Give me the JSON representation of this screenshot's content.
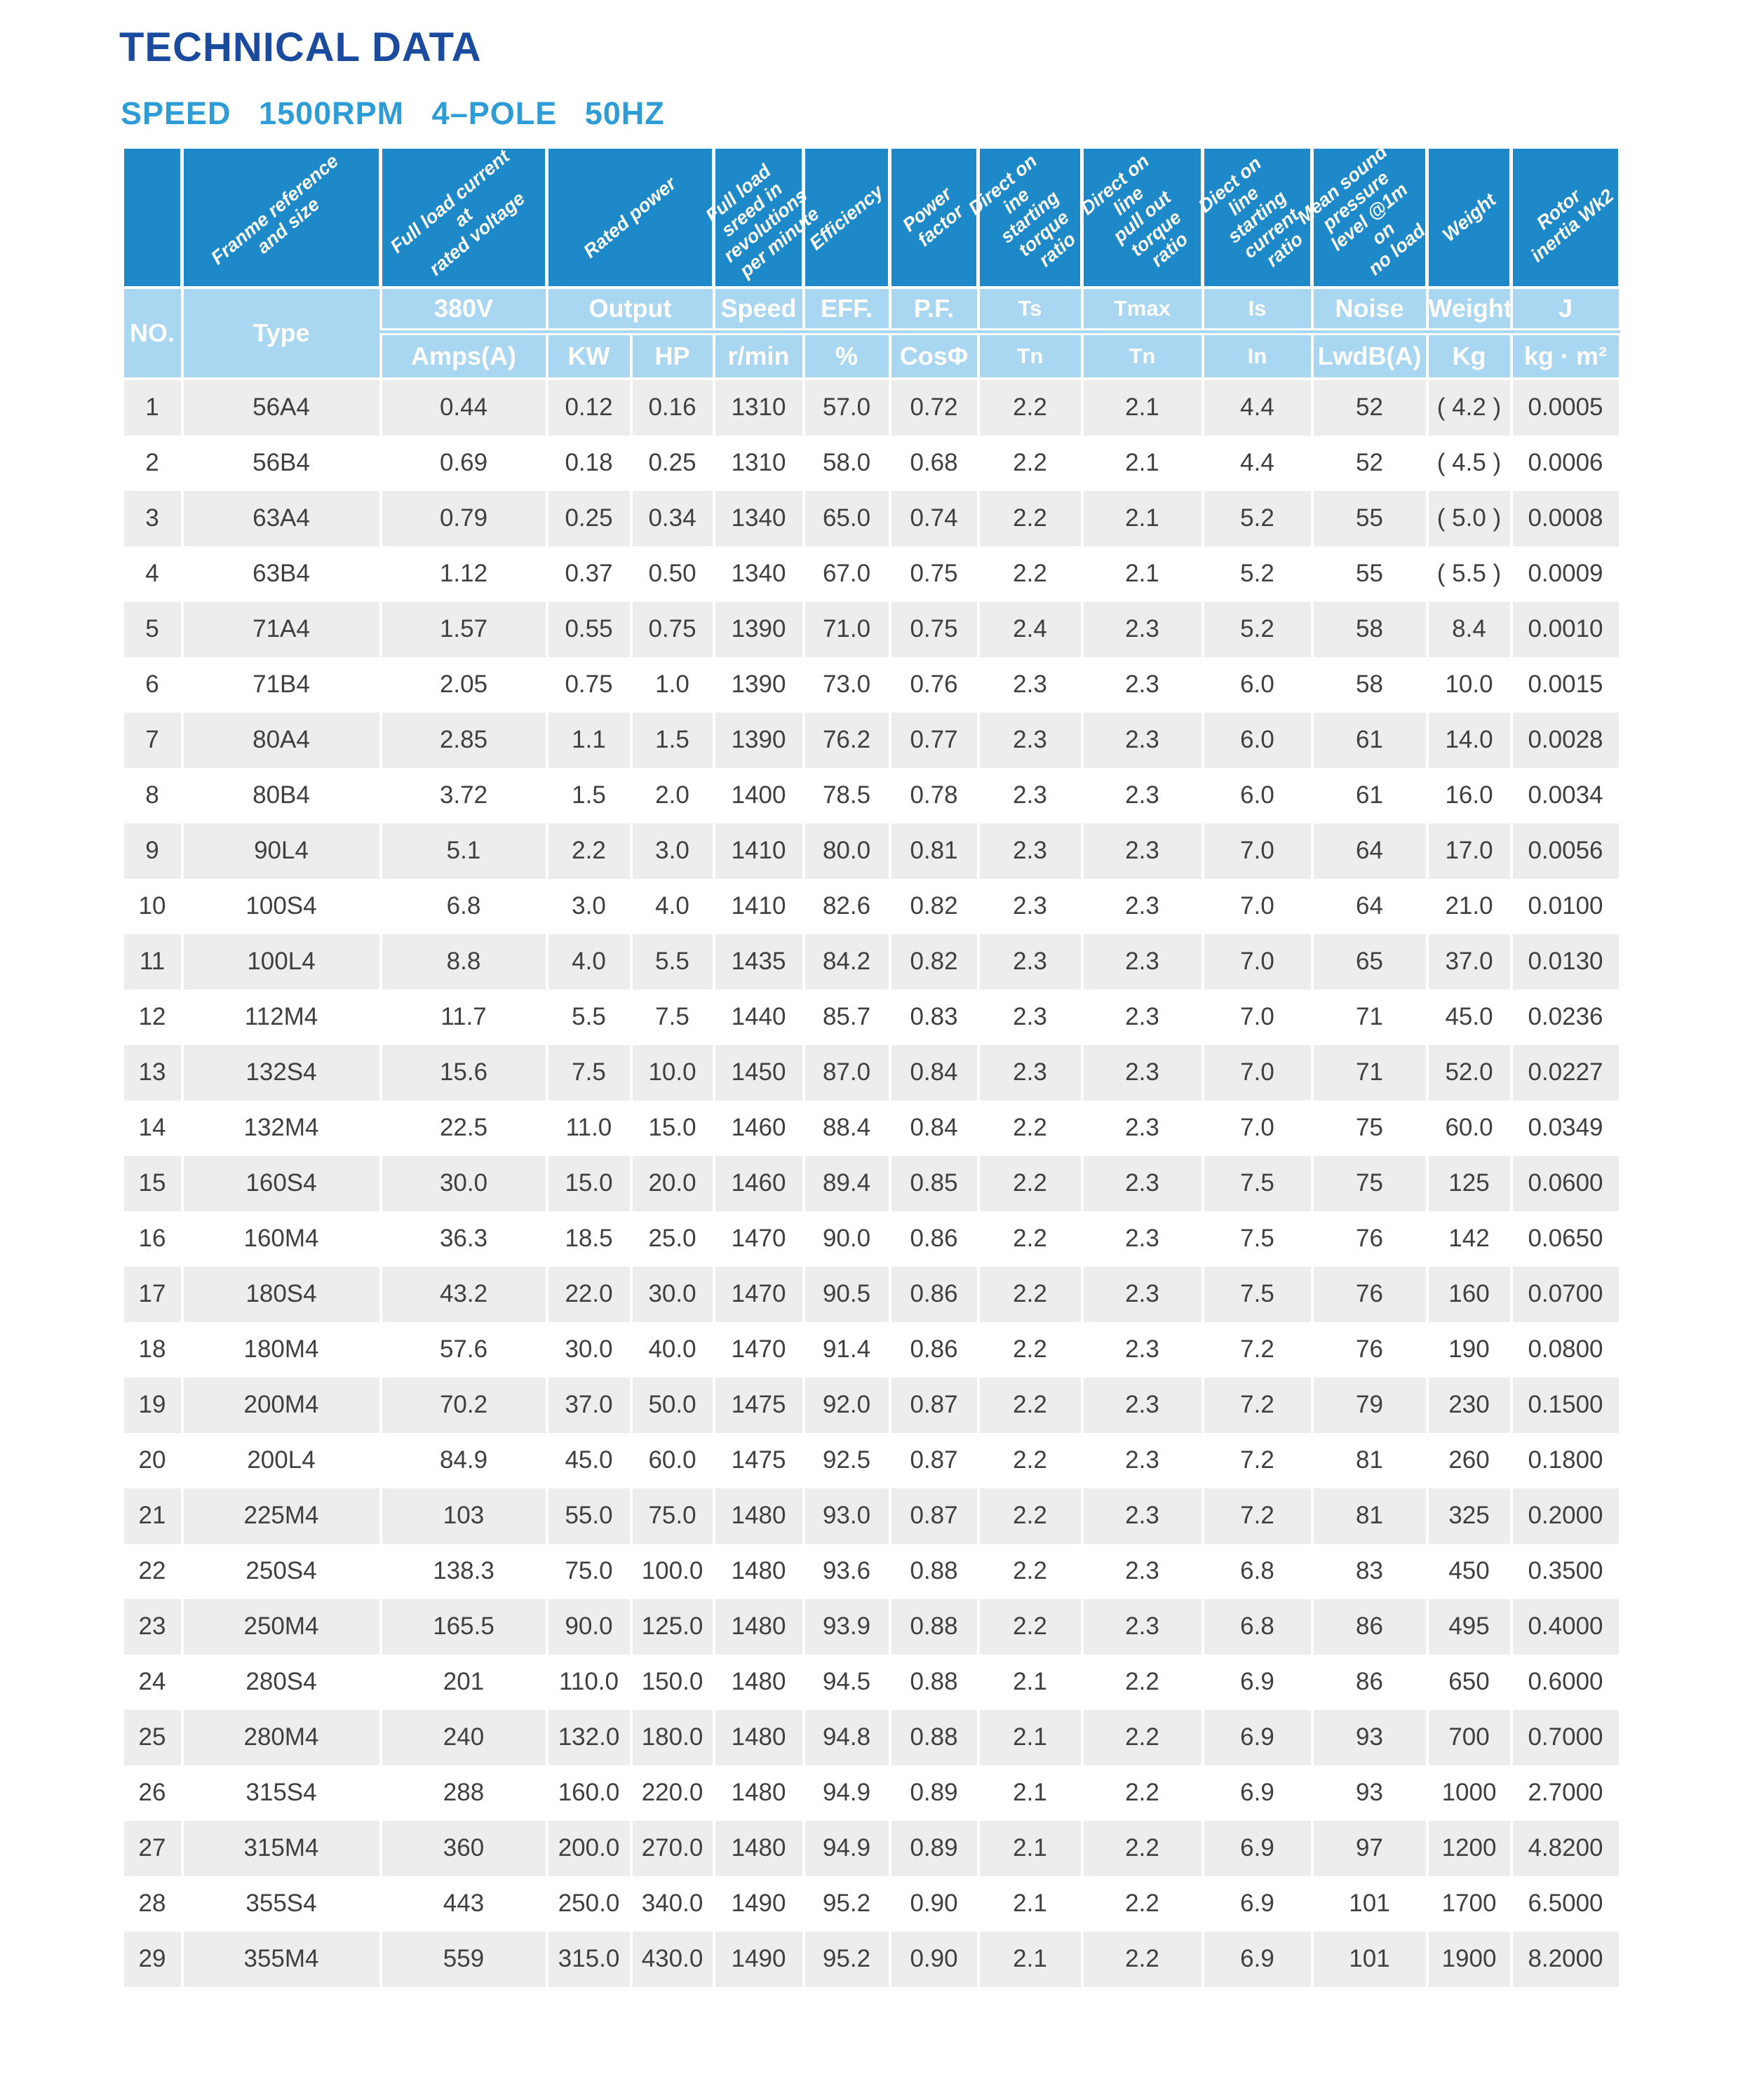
{
  "page": {
    "title": "TECHNICAL DATA",
    "subtitle": "SPEED 1500RPM 4–POLE 50HZ"
  },
  "colors": {
    "title_navy": "#1b4b9e",
    "subtitle_azure": "#2e9cd6",
    "header_dark_blue": "#1e89c8",
    "header_light_blue": "#a9d7f2",
    "row_stripe_gray": "#ededed",
    "data_text": "#3f3f3f"
  },
  "table": {
    "diagonal_headers": [
      "",
      "Franme reference\nand size",
      "Full load current at\nrated voltage",
      "Rated power",
      "Full load sreed in\nrevolutions\nper minute",
      "Efficiency",
      "Power factor",
      "Direct on ine\nstarting torque\nratio",
      "Direct on line\npull out torque\nratio",
      "Diect on line\nstarting current\nratio",
      "Mean sound\npressure\nlevel @1m on\nno load",
      "Weight",
      "Rotor inertia Wk2"
    ],
    "header_row1": {
      "no": "NO.",
      "type": "Type",
      "v380": "380V",
      "output": "Output",
      "speed": "Speed",
      "eff": "EFF.",
      "pf": "P.F.",
      "ts": "Ts",
      "tmax": "Tmax",
      "is": "Is",
      "noise": "Noise",
      "weight": "Weight",
      "j": "J"
    },
    "header_row2": {
      "amps": "Amps(A)",
      "kw": "KW",
      "hp": "HP",
      "rmin": "r/min",
      "pct": "%",
      "cos": "CosΦ",
      "tn1": "Tn",
      "tn2": "Tn",
      "in": "In",
      "lwdba": "LwdB(A)",
      "kg": "Kg",
      "kgm2": "kg · m²"
    },
    "rows": [
      [
        "1",
        "56A4",
        "0.44",
        "0.12",
        "0.16",
        "1310",
        "57.0",
        "0.72",
        "2.2",
        "2.1",
        "4.4",
        "52",
        "( 4.2 )",
        "0.0005"
      ],
      [
        "2",
        "56B4",
        "0.69",
        "0.18",
        "0.25",
        "1310",
        "58.0",
        "0.68",
        "2.2",
        "2.1",
        "4.4",
        "52",
        "( 4.5 )",
        "0.0006"
      ],
      [
        "3",
        "63A4",
        "0.79",
        "0.25",
        "0.34",
        "1340",
        "65.0",
        "0.74",
        "2.2",
        "2.1",
        "5.2",
        "55",
        "( 5.0 )",
        "0.0008"
      ],
      [
        "4",
        "63B4",
        "1.12",
        "0.37",
        "0.50",
        "1340",
        "67.0",
        "0.75",
        "2.2",
        "2.1",
        "5.2",
        "55",
        "( 5.5 )",
        "0.0009"
      ],
      [
        "5",
        "71A4",
        "1.57",
        "0.55",
        "0.75",
        "1390",
        "71.0",
        "0.75",
        "2.4",
        "2.3",
        "5.2",
        "58",
        "8.4",
        "0.0010"
      ],
      [
        "6",
        "71B4",
        "2.05",
        "0.75",
        "1.0",
        "1390",
        "73.0",
        "0.76",
        "2.3",
        "2.3",
        "6.0",
        "58",
        "10.0",
        "0.0015"
      ],
      [
        "7",
        "80A4",
        "2.85",
        "1.1",
        "1.5",
        "1390",
        "76.2",
        "0.77",
        "2.3",
        "2.3",
        "6.0",
        "61",
        "14.0",
        "0.0028"
      ],
      [
        "8",
        "80B4",
        "3.72",
        "1.5",
        "2.0",
        "1400",
        "78.5",
        "0.78",
        "2.3",
        "2.3",
        "6.0",
        "61",
        "16.0",
        "0.0034"
      ],
      [
        "9",
        "90L4",
        "5.1",
        "2.2",
        "3.0",
        "1410",
        "80.0",
        "0.81",
        "2.3",
        "2.3",
        "7.0",
        "64",
        "17.0",
        "0.0056"
      ],
      [
        "10",
        "100S4",
        "6.8",
        "3.0",
        "4.0",
        "1410",
        "82.6",
        "0.82",
        "2.3",
        "2.3",
        "7.0",
        "64",
        "21.0",
        "0.0100"
      ],
      [
        "11",
        "100L4",
        "8.8",
        "4.0",
        "5.5",
        "1435",
        "84.2",
        "0.82",
        "2.3",
        "2.3",
        "7.0",
        "65",
        "37.0",
        "0.0130"
      ],
      [
        "12",
        "112M4",
        "11.7",
        "5.5",
        "7.5",
        "1440",
        "85.7",
        "0.83",
        "2.3",
        "2.3",
        "7.0",
        "71",
        "45.0",
        "0.0236"
      ],
      [
        "13",
        "132S4",
        "15.6",
        "7.5",
        "10.0",
        "1450",
        "87.0",
        "0.84",
        "2.3",
        "2.3",
        "7.0",
        "71",
        "52.0",
        "0.0227"
      ],
      [
        "14",
        "132M4",
        "22.5",
        "11.0",
        "15.0",
        "1460",
        "88.4",
        "0.84",
        "2.2",
        "2.3",
        "7.0",
        "75",
        "60.0",
        "0.0349"
      ],
      [
        "15",
        "160S4",
        "30.0",
        "15.0",
        "20.0",
        "1460",
        "89.4",
        "0.85",
        "2.2",
        "2.3",
        "7.5",
        "75",
        "125",
        "0.0600"
      ],
      [
        "16",
        "160M4",
        "36.3",
        "18.5",
        "25.0",
        "1470",
        "90.0",
        "0.86",
        "2.2",
        "2.3",
        "7.5",
        "76",
        "142",
        "0.0650"
      ],
      [
        "17",
        "180S4",
        "43.2",
        "22.0",
        "30.0",
        "1470",
        "90.5",
        "0.86",
        "2.2",
        "2.3",
        "7.5",
        "76",
        "160",
        "0.0700"
      ],
      [
        "18",
        "180M4",
        "57.6",
        "30.0",
        "40.0",
        "1470",
        "91.4",
        "0.86",
        "2.2",
        "2.3",
        "7.2",
        "76",
        "190",
        "0.0800"
      ],
      [
        "19",
        "200M4",
        "70.2",
        "37.0",
        "50.0",
        "1475",
        "92.0",
        "0.87",
        "2.2",
        "2.3",
        "7.2",
        "79",
        "230",
        "0.1500"
      ],
      [
        "20",
        "200L4",
        "84.9",
        "45.0",
        "60.0",
        "1475",
        "92.5",
        "0.87",
        "2.2",
        "2.3",
        "7.2",
        "81",
        "260",
        "0.1800"
      ],
      [
        "21",
        "225M4",
        "103",
        "55.0",
        "75.0",
        "1480",
        "93.0",
        "0.87",
        "2.2",
        "2.3",
        "7.2",
        "81",
        "325",
        "0.2000"
      ],
      [
        "22",
        "250S4",
        "138.3",
        "75.0",
        "100.0",
        "1480",
        "93.6",
        "0.88",
        "2.2",
        "2.3",
        "6.8",
        "83",
        "450",
        "0.3500"
      ],
      [
        "23",
        "250M4",
        "165.5",
        "90.0",
        "125.0",
        "1480",
        "93.9",
        "0.88",
        "2.2",
        "2.3",
        "6.8",
        "86",
        "495",
        "0.4000"
      ],
      [
        "24",
        "280S4",
        "201",
        "110.0",
        "150.0",
        "1480",
        "94.5",
        "0.88",
        "2.1",
        "2.2",
        "6.9",
        "86",
        "650",
        "0.6000"
      ],
      [
        "25",
        "280M4",
        "240",
        "132.0",
        "180.0",
        "1480",
        "94.8",
        "0.88",
        "2.1",
        "2.2",
        "6.9",
        "93",
        "700",
        "0.7000"
      ],
      [
        "26",
        "315S4",
        "288",
        "160.0",
        "220.0",
        "1480",
        "94.9",
        "0.89",
        "2.1",
        "2.2",
        "6.9",
        "93",
        "1000",
        "2.7000"
      ],
      [
        "27",
        "315M4",
        "360",
        "200.0",
        "270.0",
        "1480",
        "94.9",
        "0.89",
        "2.1",
        "2.2",
        "6.9",
        "97",
        "1200",
        "4.8200"
      ],
      [
        "28",
        "355S4",
        "443",
        "250.0",
        "340.0",
        "1490",
        "95.2",
        "0.90",
        "2.1",
        "2.2",
        "6.9",
        "101",
        "1700",
        "6.5000"
      ],
      [
        "29",
        "355M4",
        "559",
        "315.0",
        "430.0",
        "1490",
        "95.2",
        "0.90",
        "2.1",
        "2.2",
        "6.9",
        "101",
        "1900",
        "8.2000"
      ]
    ]
  }
}
